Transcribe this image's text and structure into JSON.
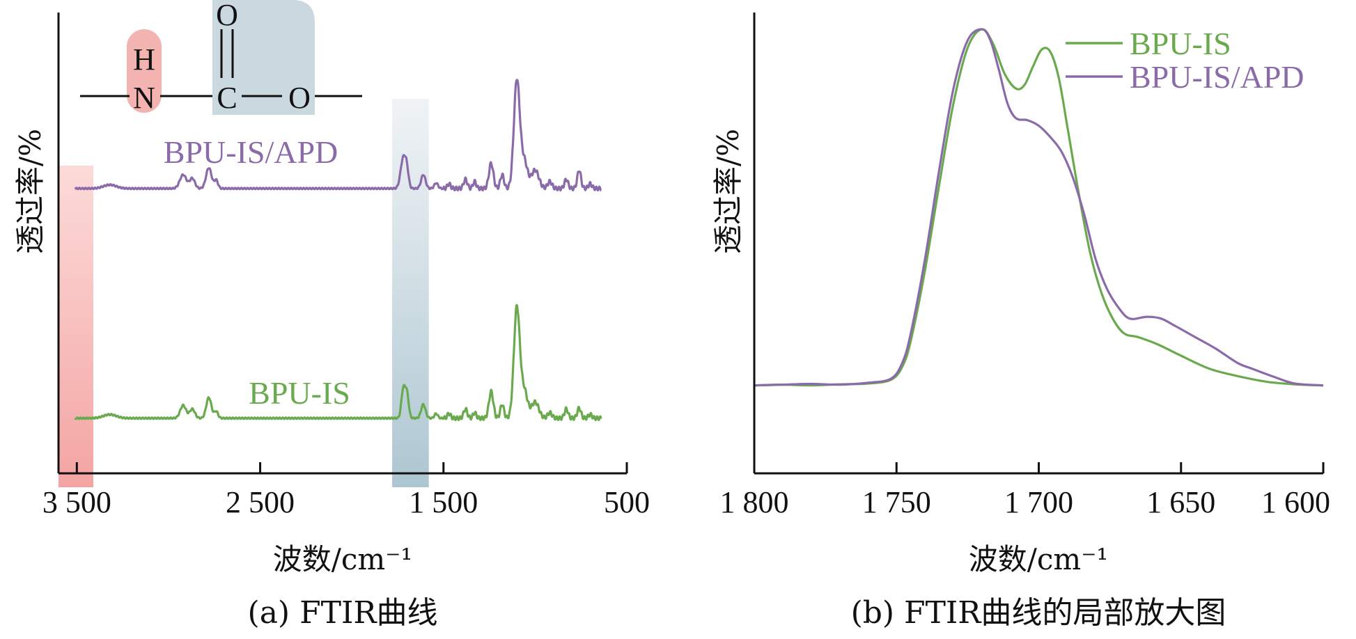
{
  "colors": {
    "purple": "#8a6aa8",
    "green": "#6aaa4e",
    "red_band": "#f4a3a3",
    "blue_band": "#b9cfd8",
    "axis": "#111111"
  },
  "chart_data": [
    {
      "type": "line",
      "panel": "a",
      "xlabel": "波数/cm⁻¹",
      "ylabel": "透过率/%",
      "caption": "(a) FTIR曲线",
      "xlim": [
        3600,
        500
      ],
      "xticks": [
        3500,
        2500,
        1500,
        500
      ],
      "xtick_labels": [
        "3 500",
        "2 500",
        "1 500",
        "500"
      ],
      "highlight_bands": [
        {
          "from": 3600,
          "to": 3410,
          "color": "red_band"
        },
        {
          "from": 1780,
          "to": 1580,
          "color": "blue_band"
        }
      ],
      "structure": {
        "atoms": [
          "H",
          "N",
          "O",
          "C",
          "O"
        ]
      },
      "series": [
        {
          "name": "BPU-IS/APD",
          "color": "purple",
          "baseline": 0.62,
          "peaks": [
            [
              3320,
              0.008,
              35
            ],
            [
              2920,
              0.03,
              18
            ],
            [
              2870,
              0.022,
              14
            ],
            [
              2780,
              0.045,
              15
            ],
            [
              2740,
              0.018,
              10
            ],
            [
              1720,
              0.065,
              14
            ],
            [
              1700,
              0.035,
              10
            ],
            [
              1610,
              0.03,
              12
            ],
            [
              1540,
              0.012,
              10
            ],
            [
              1470,
              0.01,
              9
            ],
            [
              1380,
              0.02,
              10
            ],
            [
              1330,
              0.015,
              9
            ],
            [
              1240,
              0.055,
              12
            ],
            [
              1180,
              0.03,
              10
            ],
            [
              1100,
              0.235,
              16
            ],
            [
              1060,
              0.06,
              18
            ],
            [
              1000,
              0.04,
              20
            ],
            [
              920,
              0.015,
              12
            ],
            [
              830,
              0.02,
              10
            ],
            [
              760,
              0.04,
              10
            ],
            [
              700,
              0.01,
              10
            ]
          ]
        },
        {
          "name": "BPU-IS",
          "color": "green",
          "baseline": 0.12,
          "peaks": [
            [
              3320,
              0.008,
              35
            ],
            [
              2920,
              0.028,
              16
            ],
            [
              2870,
              0.02,
              14
            ],
            [
              2780,
              0.045,
              14
            ],
            [
              2740,
              0.015,
              10
            ],
            [
              1720,
              0.06,
              10
            ],
            [
              1700,
              0.055,
              10
            ],
            [
              1610,
              0.03,
              12
            ],
            [
              1540,
              0.01,
              9
            ],
            [
              1470,
              0.01,
              9
            ],
            [
              1380,
              0.02,
              10
            ],
            [
              1330,
              0.012,
              9
            ],
            [
              1240,
              0.058,
              12
            ],
            [
              1180,
              0.03,
              10
            ],
            [
              1100,
              0.24,
              16
            ],
            [
              1060,
              0.06,
              18
            ],
            [
              1000,
              0.035,
              20
            ],
            [
              920,
              0.012,
              12
            ],
            [
              830,
              0.02,
              10
            ],
            [
              760,
              0.022,
              10
            ],
            [
              700,
              0.008,
              10
            ]
          ]
        }
      ]
    },
    {
      "type": "line",
      "panel": "b",
      "xlabel": "波数/cm⁻¹",
      "ylabel": "透过率/%",
      "caption": "(b) FTIR曲线的局部放大图",
      "xlim": [
        1800,
        1600
      ],
      "xticks": [
        1800,
        1750,
        1700,
        1650,
        1600
      ],
      "xtick_labels": [
        "1 800",
        "1 750",
        "1 700",
        "1 650",
        "1 600"
      ],
      "legend": "top-right",
      "series": [
        {
          "name": "BPU-IS",
          "color": "green",
          "points": [
            [
              1800,
              0.04
            ],
            [
              1790,
              0.042
            ],
            [
              1780,
              0.04
            ],
            [
              1770,
              0.043
            ],
            [
              1760,
              0.045
            ],
            [
              1752,
              0.055
            ],
            [
              1748,
              0.09
            ],
            [
              1745,
              0.16
            ],
            [
              1740,
              0.35
            ],
            [
              1735,
              0.58
            ],
            [
              1730,
              0.8
            ],
            [
              1725,
              0.95
            ],
            [
              1720,
              1.0
            ],
            [
              1716,
              0.96
            ],
            [
              1712,
              0.88
            ],
            [
              1708,
              0.84
            ],
            [
              1705,
              0.85
            ],
            [
              1702,
              0.9
            ],
            [
              1699,
              0.945
            ],
            [
              1696,
              0.94
            ],
            [
              1693,
              0.87
            ],
            [
              1690,
              0.74
            ],
            [
              1686,
              0.56
            ],
            [
              1682,
              0.4
            ],
            [
              1678,
              0.29
            ],
            [
              1674,
              0.22
            ],
            [
              1670,
              0.18
            ],
            [
              1665,
              0.17
            ],
            [
              1658,
              0.15
            ],
            [
              1650,
              0.12
            ],
            [
              1640,
              0.085
            ],
            [
              1630,
              0.065
            ],
            [
              1620,
              0.05
            ],
            [
              1610,
              0.043
            ],
            [
              1600,
              0.04
            ]
          ]
        },
        {
          "name": "BPU-IS/APD",
          "color": "purple",
          "points": [
            [
              1800,
              0.04
            ],
            [
              1790,
              0.042
            ],
            [
              1780,
              0.044
            ],
            [
              1770,
              0.042
            ],
            [
              1760,
              0.047
            ],
            [
              1752,
              0.058
            ],
            [
              1748,
              0.1
            ],
            [
              1745,
              0.18
            ],
            [
              1740,
              0.38
            ],
            [
              1735,
              0.62
            ],
            [
              1730,
              0.84
            ],
            [
              1725,
              0.97
            ],
            [
              1720,
              1.0
            ],
            [
              1717,
              0.97
            ],
            [
              1714,
              0.89
            ],
            [
              1711,
              0.8
            ],
            [
              1708,
              0.76
            ],
            [
              1704,
              0.755
            ],
            [
              1700,
              0.74
            ],
            [
              1696,
              0.71
            ],
            [
              1692,
              0.67
            ],
            [
              1688,
              0.6
            ],
            [
              1684,
              0.5
            ],
            [
              1680,
              0.38
            ],
            [
              1676,
              0.3
            ],
            [
              1672,
              0.25
            ],
            [
              1668,
              0.22
            ],
            [
              1662,
              0.225
            ],
            [
              1657,
              0.22
            ],
            [
              1652,
              0.2
            ],
            [
              1645,
              0.17
            ],
            [
              1638,
              0.14
            ],
            [
              1630,
              0.1
            ],
            [
              1625,
              0.085
            ],
            [
              1618,
              0.065
            ],
            [
              1610,
              0.045
            ],
            [
              1600,
              0.04
            ]
          ]
        }
      ]
    }
  ]
}
